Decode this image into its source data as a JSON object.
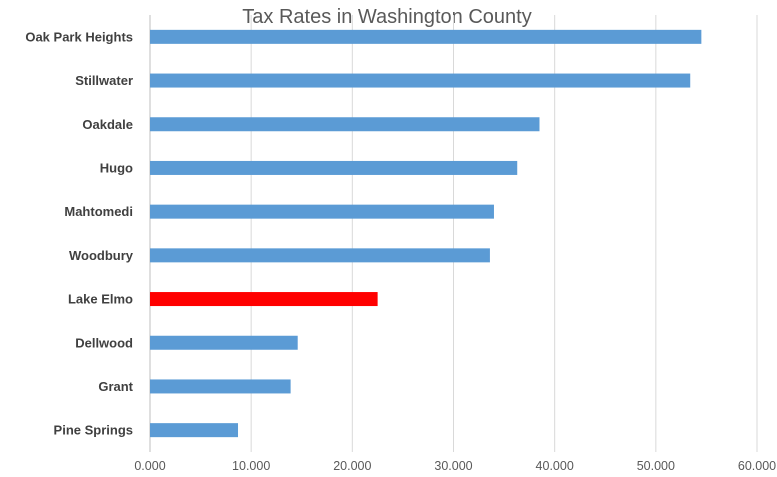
{
  "chart_data": {
    "type": "bar",
    "orientation": "horizontal",
    "title": "Tax Rates in Washington County",
    "xlabel": "",
    "ylabel": "",
    "categories": [
      "Oak Park Heights",
      "Stillwater",
      "Oakdale",
      "Hugo",
      "Mahtomedi",
      "Woodbury",
      "Lake Elmo",
      "Dellwood",
      "Grant",
      "Pine Springs"
    ],
    "values": [
      54.5,
      53.4,
      38.5,
      36.3,
      34.0,
      33.6,
      22.5,
      14.6,
      13.9,
      8.7
    ],
    "xlim": [
      0,
      60
    ],
    "ticks": [
      "0.000",
      "10.000",
      "20.000",
      "30.000",
      "40.000",
      "50.000",
      "60.000"
    ],
    "grid": true,
    "legend": "none",
    "colors": {
      "default": "#5b9bd5",
      "highlight": "#ff0000",
      "highlight_category": "Lake Elmo"
    }
  }
}
